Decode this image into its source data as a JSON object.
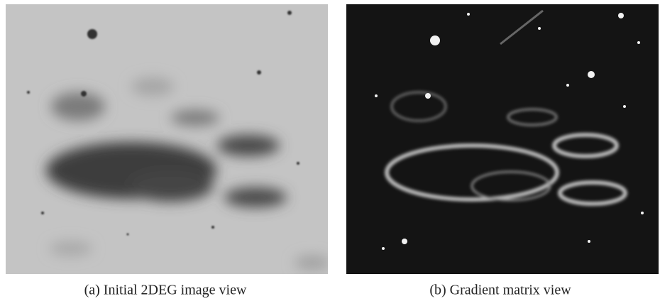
{
  "figures": [
    {
      "caption": "(a) Initial 2DEG image view"
    },
    {
      "caption": "(b) Gradient matrix view"
    }
  ]
}
